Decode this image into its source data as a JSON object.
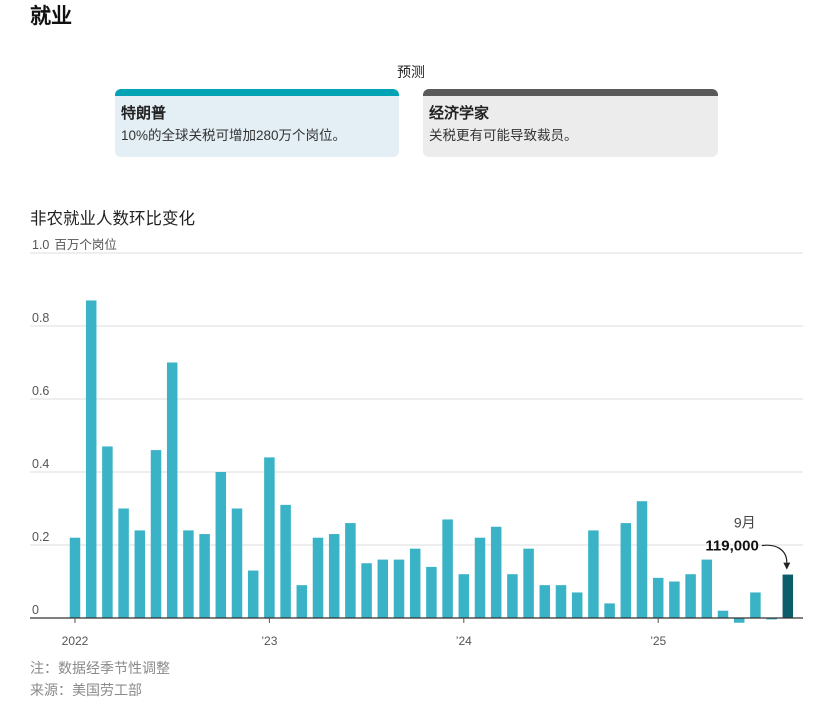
{
  "page": {
    "title": "就业"
  },
  "forecast": {
    "heading": "预测",
    "cards": [
      {
        "title": "特朗普",
        "text": "10%的全球关税可增加280万个岗位。",
        "accent_color": "#00a3b5",
        "background_color": "#e3eef5"
      },
      {
        "title": "经济学家",
        "text": "关税更有可能导致裁员。",
        "accent_color": "#5a5a5a",
        "background_color": "#ececec"
      }
    ]
  },
  "chart_data": {
    "type": "bar",
    "title": "非农就业人数环比变化",
    "ylabel": "百万个岗位",
    "ylim": [
      0,
      1.0
    ],
    "grid": true,
    "yticks": [
      {
        "value": 0,
        "label": "0"
      },
      {
        "value": 0.2,
        "label": "0.2"
      },
      {
        "value": 0.4,
        "label": "0.4"
      },
      {
        "value": 0.6,
        "label": "0.6"
      },
      {
        "value": 0.8,
        "label": "0.8"
      },
      {
        "value": 1.0,
        "label": "1.0"
      }
    ],
    "xticks": [
      {
        "x": "2022-01",
        "label": "2022"
      },
      {
        "x": "2023-01",
        "label": "’23"
      },
      {
        "x": "2024-01",
        "label": "’24"
      },
      {
        "x": "2025-01",
        "label": "’25"
      }
    ],
    "x": [
      "2022-01",
      "2022-02",
      "2022-03",
      "2022-04",
      "2022-05",
      "2022-06",
      "2022-07",
      "2022-08",
      "2022-09",
      "2022-10",
      "2022-11",
      "2022-12",
      "2023-01",
      "2023-02",
      "2023-03",
      "2023-04",
      "2023-05",
      "2023-06",
      "2023-07",
      "2023-08",
      "2023-09",
      "2023-10",
      "2023-11",
      "2023-12",
      "2024-01",
      "2024-02",
      "2024-03",
      "2024-04",
      "2024-05",
      "2024-06",
      "2024-07",
      "2024-08",
      "2024-09",
      "2024-10",
      "2024-11",
      "2024-12",
      "2025-01",
      "2025-02",
      "2025-03",
      "2025-04",
      "2025-05",
      "2025-06",
      "2025-07",
      "2025-08",
      "2025-09"
    ],
    "values": [
      0.22,
      0.87,
      0.47,
      0.3,
      0.24,
      0.46,
      0.7,
      0.24,
      0.23,
      0.4,
      0.3,
      0.13,
      0.44,
      0.31,
      0.09,
      0.22,
      0.23,
      0.26,
      0.15,
      0.16,
      0.16,
      0.19,
      0.14,
      0.27,
      0.12,
      0.22,
      0.25,
      0.12,
      0.19,
      0.09,
      0.09,
      0.07,
      0.24,
      0.04,
      0.26,
      0.32,
      0.11,
      0.1,
      0.12,
      0.16,
      0.02,
      -0.013,
      0.07,
      -0.004,
      0.119
    ],
    "bar_color": "#3ab3c6",
    "highlight": "2025-09",
    "highlight_color": "#0b5d69",
    "annotation": {
      "x": "2025-09",
      "month_label": "9月",
      "value_label": "119,000"
    }
  },
  "footer": {
    "note": "注：数据经季节性调整",
    "source": "来源：美国劳工部"
  }
}
